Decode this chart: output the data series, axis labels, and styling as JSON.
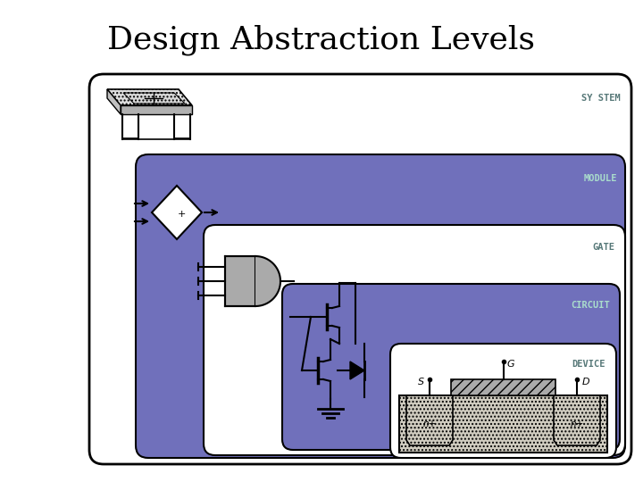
{
  "title": "Design Abstraction Levels",
  "title_fontsize": 26,
  "title_font": "serif",
  "bg_color": "#ffffff",
  "purple": "#7070bb",
  "label_color_light": "#aaddcc",
  "label_color_dark": "#557777",
  "labels": {
    "system": "SY STEM",
    "module": "MODULE",
    "gate": "GATE",
    "circuit": "CIRCUIT",
    "device": "DEVICE"
  }
}
